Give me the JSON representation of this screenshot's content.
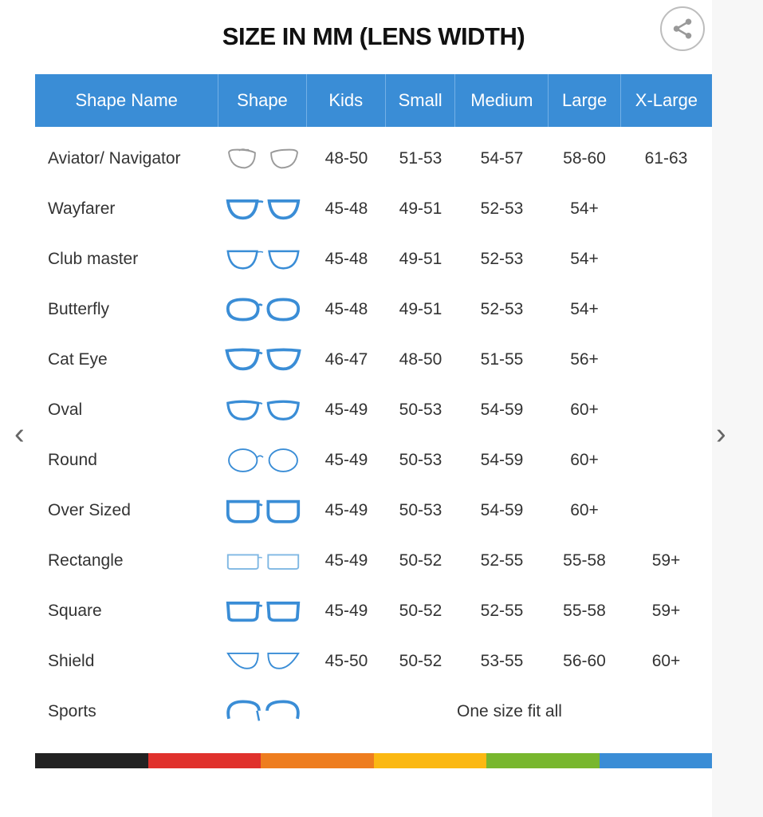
{
  "title": "SIZE IN MM (LENS WIDTH)",
  "share_icon": "share-icon",
  "nav": {
    "prev": "‹",
    "next": "›"
  },
  "columns": [
    "Shape Name",
    "Shape",
    "Kids",
    "Small",
    "Medium",
    "Large",
    "X-Large"
  ],
  "rows": [
    {
      "name": "Aviator/ Navigator",
      "shape": "aviator",
      "sizes": [
        "48-50",
        "51-53",
        "54-57",
        "58-60",
        "61-63"
      ]
    },
    {
      "name": "Wayfarer",
      "shape": "wayfarer",
      "sizes": [
        "45-48",
        "49-51",
        "52-53",
        "54+",
        ""
      ]
    },
    {
      "name": "Club master",
      "shape": "clubmaster",
      "sizes": [
        "45-48",
        "49-51",
        "52-53",
        "54+",
        ""
      ]
    },
    {
      "name": "Butterfly",
      "shape": "butterfly",
      "sizes": [
        "45-48",
        "49-51",
        "52-53",
        "54+",
        ""
      ]
    },
    {
      "name": "Cat Eye",
      "shape": "cateye",
      "sizes": [
        "46-47",
        "48-50",
        "51-55",
        "56+",
        ""
      ]
    },
    {
      "name": "Oval",
      "shape": "oval",
      "sizes": [
        "45-49",
        "50-53",
        "54-59",
        "60+",
        ""
      ]
    },
    {
      "name": "Round",
      "shape": "round",
      "sizes": [
        "45-49",
        "50-53",
        "54-59",
        "60+",
        ""
      ]
    },
    {
      "name": "Over Sized",
      "shape": "oversized",
      "sizes": [
        "45-49",
        "50-53",
        "54-59",
        "60+",
        ""
      ]
    },
    {
      "name": "Rectangle",
      "shape": "rectangle",
      "sizes": [
        "45-49",
        "50-52",
        "52-55",
        "55-58",
        "59+"
      ]
    },
    {
      "name": "Square",
      "shape": "square",
      "sizes": [
        "45-49",
        "50-52",
        "52-55",
        "55-58",
        "59+"
      ]
    },
    {
      "name": "Shield",
      "shape": "shield",
      "sizes": [
        "45-50",
        "50-52",
        "53-55",
        "56-60",
        "60+"
      ]
    },
    {
      "name": "Sports",
      "shape": "sports",
      "one_size": "One size fit all"
    }
  ],
  "colors": {
    "header": "#3a8dd6",
    "frame": "#3a8dd6",
    "stripes": [
      "#222222",
      "#e0312c",
      "#ee7d1f",
      "#fbb812",
      "#78b72e",
      "#3a8dd6"
    ]
  }
}
